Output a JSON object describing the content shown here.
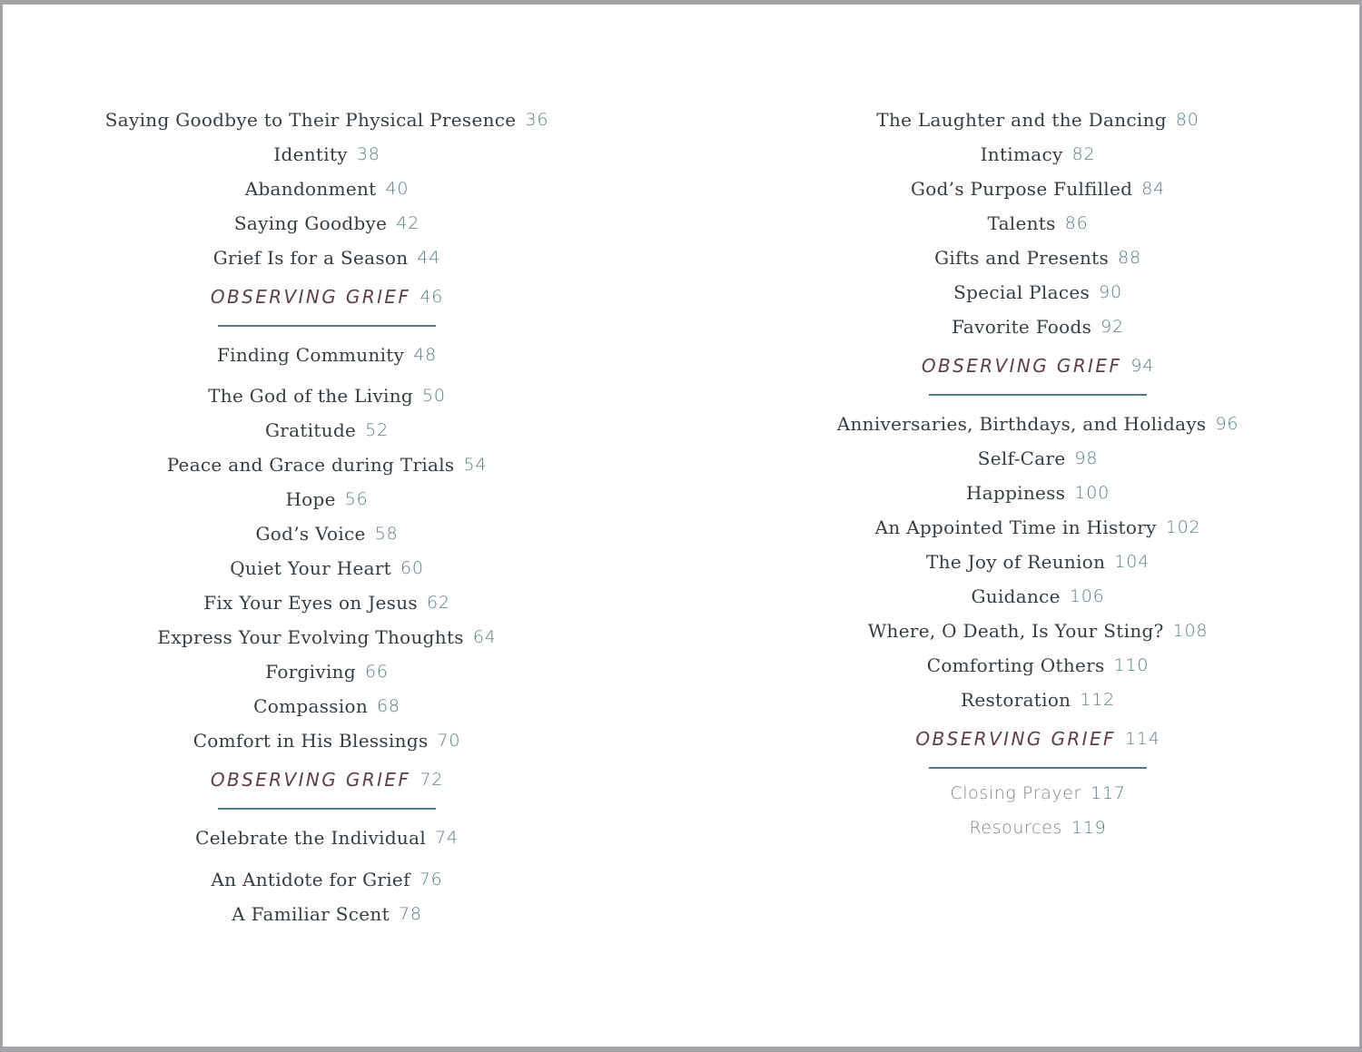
{
  "page": {
    "kind": "book-table-of-contents"
  },
  "colors": {
    "title": "#333d44",
    "page_number": "#578089",
    "section": "#5e3e4b",
    "divider": "#4e7f88",
    "muted_entry": "#7f8488",
    "frame": "#a3a3a7"
  },
  "columns": [
    {
      "name": "left",
      "items": [
        {
          "type": "entry",
          "label": "Saying Goodbye to Their Physical Presence",
          "page": "36"
        },
        {
          "type": "entry",
          "label": "Identity",
          "page": "38"
        },
        {
          "type": "entry",
          "label": "Abandonment",
          "page": "40"
        },
        {
          "type": "entry",
          "label": "Saying Goodbye",
          "page": "42"
        },
        {
          "type": "entry",
          "label": "Grief Is for a Season",
          "page": "44"
        },
        {
          "type": "section",
          "label": "OBSERVING GRIEF",
          "page": "46"
        },
        {
          "type": "divider"
        },
        {
          "type": "entry",
          "label": "Finding Community",
          "page": "48"
        },
        {
          "type": "entry",
          "label": "The God of the Living",
          "page": "50",
          "gap": 7
        },
        {
          "type": "entry",
          "label": "Gratitude",
          "page": "52"
        },
        {
          "type": "entry",
          "label": "Peace and Grace during Trials",
          "page": "54"
        },
        {
          "type": "entry",
          "label": "Hope",
          "page": "56"
        },
        {
          "type": "entry",
          "label": "God’s Voice",
          "page": "58"
        },
        {
          "type": "entry",
          "label": "Quiet Your Heart",
          "page": "60"
        },
        {
          "type": "entry",
          "label": "Fix Your Eyes on Jesus",
          "page": "62"
        },
        {
          "type": "entry",
          "label": "Express Your Evolving Thoughts",
          "page": "64"
        },
        {
          "type": "entry",
          "label": "Forgiving",
          "page": "66"
        },
        {
          "type": "entry",
          "label": "Compassion",
          "page": "68"
        },
        {
          "type": "entry",
          "label": "Comfort in His Blessings",
          "page": "70"
        },
        {
          "type": "section",
          "label": "OBSERVING GRIEF",
          "page": "72"
        },
        {
          "type": "divider"
        },
        {
          "type": "entry",
          "label": "Celebrate the Individual",
          "page": "74"
        },
        {
          "type": "entry",
          "label": "An Antidote for Grief",
          "page": "76",
          "gap": 8
        },
        {
          "type": "entry",
          "label": "A Familiar Scent",
          "page": "78"
        }
      ]
    },
    {
      "name": "right",
      "items": [
        {
          "type": "entry",
          "label": "The Laughter and the Dancing",
          "page": "80"
        },
        {
          "type": "entry",
          "label": "Intimacy",
          "page": "82"
        },
        {
          "type": "entry",
          "label": "God’s Purpose Fulfilled",
          "page": "84"
        },
        {
          "type": "entry",
          "label": "Talents",
          "page": "86"
        },
        {
          "type": "entry",
          "label": "Gifts and Presents",
          "page": "88"
        },
        {
          "type": "entry",
          "label": "Special Places",
          "page": "90"
        },
        {
          "type": "entry",
          "label": "Favorite Foods",
          "page": "92"
        },
        {
          "type": "section",
          "label": "OBSERVING GRIEF",
          "page": "94"
        },
        {
          "type": "divider"
        },
        {
          "type": "entry",
          "label": "Anniversaries, Birthdays, and Holidays",
          "page": "96"
        },
        {
          "type": "entry",
          "label": "Self-Care",
          "page": "98"
        },
        {
          "type": "entry",
          "label": "Happiness",
          "page": "100"
        },
        {
          "type": "entry",
          "label": "An Appointed Time in History",
          "page": "102"
        },
        {
          "type": "entry",
          "label": "The Joy of Reunion",
          "page": "104"
        },
        {
          "type": "entry",
          "label": "Guidance",
          "page": "106"
        },
        {
          "type": "entry",
          "label": "Where, O Death, Is Your Sting?",
          "page": "108"
        },
        {
          "type": "entry",
          "label": "Comforting Others",
          "page": "110"
        },
        {
          "type": "entry",
          "label": "Restoration",
          "page": "112"
        },
        {
          "type": "section",
          "label": "OBSERVING GRIEF",
          "page": "114"
        },
        {
          "type": "divider"
        },
        {
          "type": "muted",
          "label": "Closing Prayer",
          "page": "117",
          "gap": -4
        },
        {
          "type": "muted",
          "label": "Resources",
          "page": "119"
        }
      ]
    }
  ]
}
